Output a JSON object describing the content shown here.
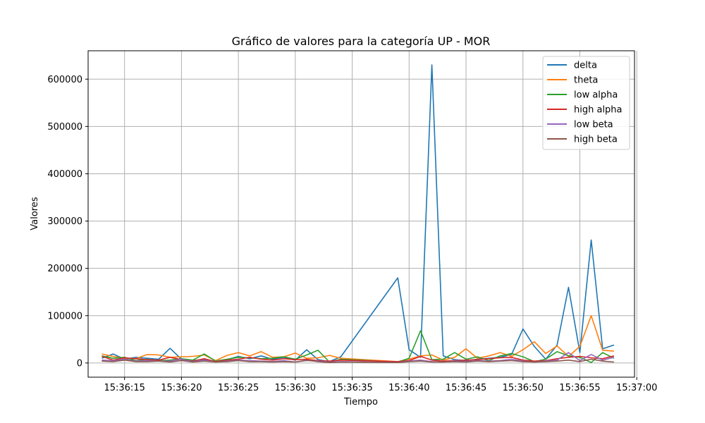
{
  "chart_data": {
    "type": "line",
    "title": "Gráfico de valores para la categoría UP - MOR",
    "xlabel": "Tiempo",
    "ylabel": "Valores",
    "x_axis_type": "time",
    "xlim": [
      "15:36:11.8",
      "15:36:59.8"
    ],
    "ylim": [
      -30000,
      660000
    ],
    "x_ticks": [
      "15:36:15",
      "15:36:20",
      "15:36:25",
      "15:36:30",
      "15:36:35",
      "15:36:40",
      "15:36:45",
      "15:36:50",
      "15:36:55",
      "15:37:00"
    ],
    "y_ticks": [
      0,
      100000,
      200000,
      300000,
      400000,
      500000,
      600000
    ],
    "grid": true,
    "legend_position": "top-right",
    "x": [
      "15:36:13",
      "15:36:14",
      "15:36:15",
      "15:36:16",
      "15:36:17",
      "15:36:18",
      "15:36:19",
      "15:36:20",
      "15:36:21",
      "15:36:22",
      "15:36:23",
      "15:36:24",
      "15:36:25",
      "15:36:26",
      "15:36:27",
      "15:36:28",
      "15:36:29",
      "15:36:30",
      "15:36:31",
      "15:36:32",
      "15:36:33",
      "15:36:34",
      "15:36:39",
      "15:36:40",
      "15:36:41",
      "15:36:42",
      "15:36:43",
      "15:36:44",
      "15:36:45",
      "15:36:46",
      "15:36:47",
      "15:36:48",
      "15:36:49",
      "15:36:50",
      "15:36:51",
      "15:36:52",
      "15:36:53",
      "15:36:54",
      "15:36:55",
      "15:36:56",
      "15:36:57",
      "15:36:58"
    ],
    "series": [
      {
        "name": "delta",
        "color": "#1f77b4",
        "values": [
          10000,
          19000,
          8000,
          12000,
          10000,
          8000,
          31000,
          8000,
          5000,
          8000,
          3000,
          7000,
          14000,
          9000,
          15000,
          8000,
          12000,
          6000,
          28000,
          7000,
          3000,
          13000,
          180000,
          28000,
          12000,
          630000,
          15000,
          7000,
          5000,
          8000,
          10000,
          12000,
          18000,
          72000,
          35000,
          8000,
          38000,
          160000,
          22000,
          260000,
          30000,
          38000
        ]
      },
      {
        "name": "theta",
        "color": "#ff7f0e",
        "values": [
          19000,
          14000,
          10000,
          9000,
          18000,
          17000,
          12000,
          13000,
          14000,
          17000,
          5000,
          16000,
          22000,
          15000,
          24000,
          12000,
          13000,
          21000,
          10000,
          11000,
          16000,
          10000,
          3000,
          8000,
          15000,
          17000,
          6000,
          12000,
          30000,
          10000,
          15000,
          22000,
          14000,
          28000,
          45000,
          20000,
          36000,
          14000,
          35000,
          100000,
          27000,
          25000
        ]
      },
      {
        "name": "low alpha",
        "color": "#2ca02c",
        "values": [
          15000,
          10000,
          12000,
          5000,
          8000,
          5000,
          6000,
          9000,
          6000,
          19000,
          4000,
          8000,
          12000,
          11000,
          9000,
          10000,
          13000,
          8000,
          17000,
          27000,
          2000,
          8000,
          2000,
          10000,
          68000,
          7000,
          8000,
          22000,
          8000,
          13000,
          5000,
          15000,
          20000,
          13000,
          3000,
          8000,
          24000,
          15000,
          12000,
          1000,
          22000,
          10000
        ]
      },
      {
        "name": "high alpha",
        "color": "#d62728",
        "values": [
          14000,
          6000,
          11000,
          9000,
          7000,
          6000,
          12000,
          7000,
          4000,
          9000,
          3000,
          6000,
          8000,
          12000,
          8000,
          6000,
          9000,
          7000,
          8000,
          5000,
          4000,
          6000,
          3000,
          5000,
          14000,
          6000,
          4000,
          5000,
          6000,
          7000,
          9000,
          11000,
          12000,
          6000,
          4000,
          5000,
          9000,
          12000,
          14000,
          11000,
          9000,
          15000
        ]
      },
      {
        "name": "low beta",
        "color": "#9467bd",
        "values": [
          6000,
          5000,
          8000,
          4000,
          5000,
          4000,
          4000,
          8000,
          3000,
          6000,
          2000,
          4000,
          6000,
          5000,
          4000,
          3000,
          5000,
          2000,
          5000,
          4000,
          2000,
          3000,
          1000,
          4000,
          6000,
          3000,
          2000,
          4000,
          3000,
          5000,
          4000,
          5000,
          8000,
          4000,
          2000,
          4000,
          6000,
          22000,
          5000,
          18000,
          6000,
          12000
        ]
      },
      {
        "name": "high beta",
        "color": "#8c564b",
        "values": [
          4000,
          3000,
          6000,
          3000,
          3000,
          4000,
          2000,
          5000,
          2000,
          4000,
          2000,
          3000,
          5000,
          3000,
          3000,
          2000,
          3000,
          2000,
          6000,
          3000,
          1000,
          2000,
          1000,
          3000,
          4000,
          2000,
          2000,
          3000,
          2000,
          4000,
          3000,
          4000,
          5000,
          3000,
          2000,
          3000,
          4000,
          6000,
          3000,
          8000,
          4000,
          2000
        ]
      }
    ]
  }
}
